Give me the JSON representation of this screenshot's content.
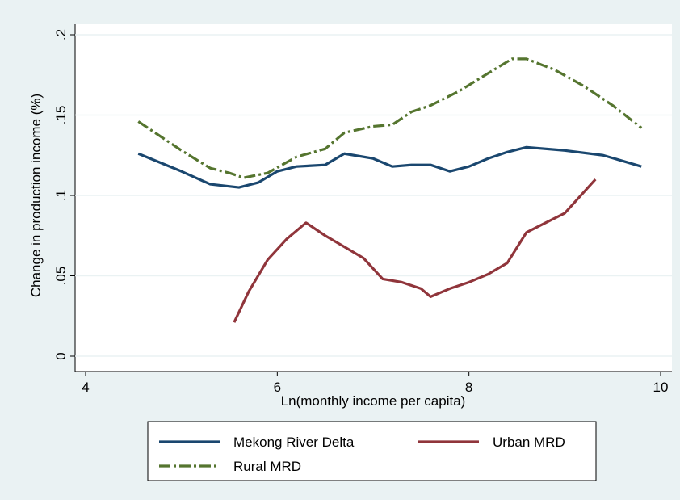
{
  "chart_data": {
    "type": "line",
    "x_label": "Ln(monthly income per capita)",
    "y_label": "Change in production income (%)",
    "xlim": [
      4,
      10
    ],
    "xticks": [
      4,
      6,
      8,
      10
    ],
    "ylim": [
      0,
      0.2
    ],
    "yticks": [
      0,
      {
        "value": 0.05,
        "label": ".05"
      },
      {
        "value": 0.1,
        "label": ".1"
      },
      {
        "value": 0.15,
        "label": ".15"
      },
      {
        "value": 0.2,
        "label": ".2"
      }
    ],
    "grid": true,
    "series": [
      {
        "name": "Mekong River Delta",
        "color": "#1a476f",
        "dash": "solid",
        "x": [
          4.55,
          5.0,
          5.3,
          5.6,
          5.8,
          6.0,
          6.2,
          6.5,
          6.7,
          7.0,
          7.2,
          7.4,
          7.6,
          7.8,
          8.0,
          8.2,
          8.4,
          8.6,
          9.0,
          9.4,
          9.8
        ],
        "values": [
          0.126,
          0.115,
          0.107,
          0.105,
          0.108,
          0.115,
          0.118,
          0.119,
          0.126,
          0.123,
          0.118,
          0.119,
          0.119,
          0.115,
          0.118,
          0.123,
          0.127,
          0.13,
          0.128,
          0.125,
          0.118
        ]
      },
      {
        "name": "Urban MRD",
        "color": "#90353b",
        "dash": "solid",
        "x": [
          5.55,
          5.7,
          5.9,
          6.1,
          6.3,
          6.5,
          6.7,
          6.9,
          7.1,
          7.3,
          7.5,
          7.6,
          7.8,
          8.0,
          8.2,
          8.4,
          8.6,
          8.8,
          9.0,
          9.32
        ],
        "values": [
          0.021,
          0.04,
          0.06,
          0.073,
          0.083,
          0.075,
          0.068,
          0.061,
          0.048,
          0.046,
          0.042,
          0.037,
          0.042,
          0.046,
          0.051,
          0.058,
          0.077,
          0.083,
          0.089,
          0.11
        ]
      },
      {
        "name": "Rural MRD",
        "color": "#55752f",
        "dash": "dash-dot",
        "x": [
          4.55,
          5.0,
          5.3,
          5.5,
          5.65,
          5.9,
          6.2,
          6.5,
          6.7,
          7.0,
          7.2,
          7.4,
          7.6,
          7.9,
          8.2,
          8.45,
          8.6,
          8.9,
          9.2,
          9.5,
          9.8
        ],
        "values": [
          0.146,
          0.128,
          0.117,
          0.114,
          0.111,
          0.114,
          0.124,
          0.129,
          0.139,
          0.143,
          0.144,
          0.152,
          0.156,
          0.165,
          0.176,
          0.185,
          0.185,
          0.178,
          0.168,
          0.156,
          0.142
        ]
      }
    ]
  }
}
